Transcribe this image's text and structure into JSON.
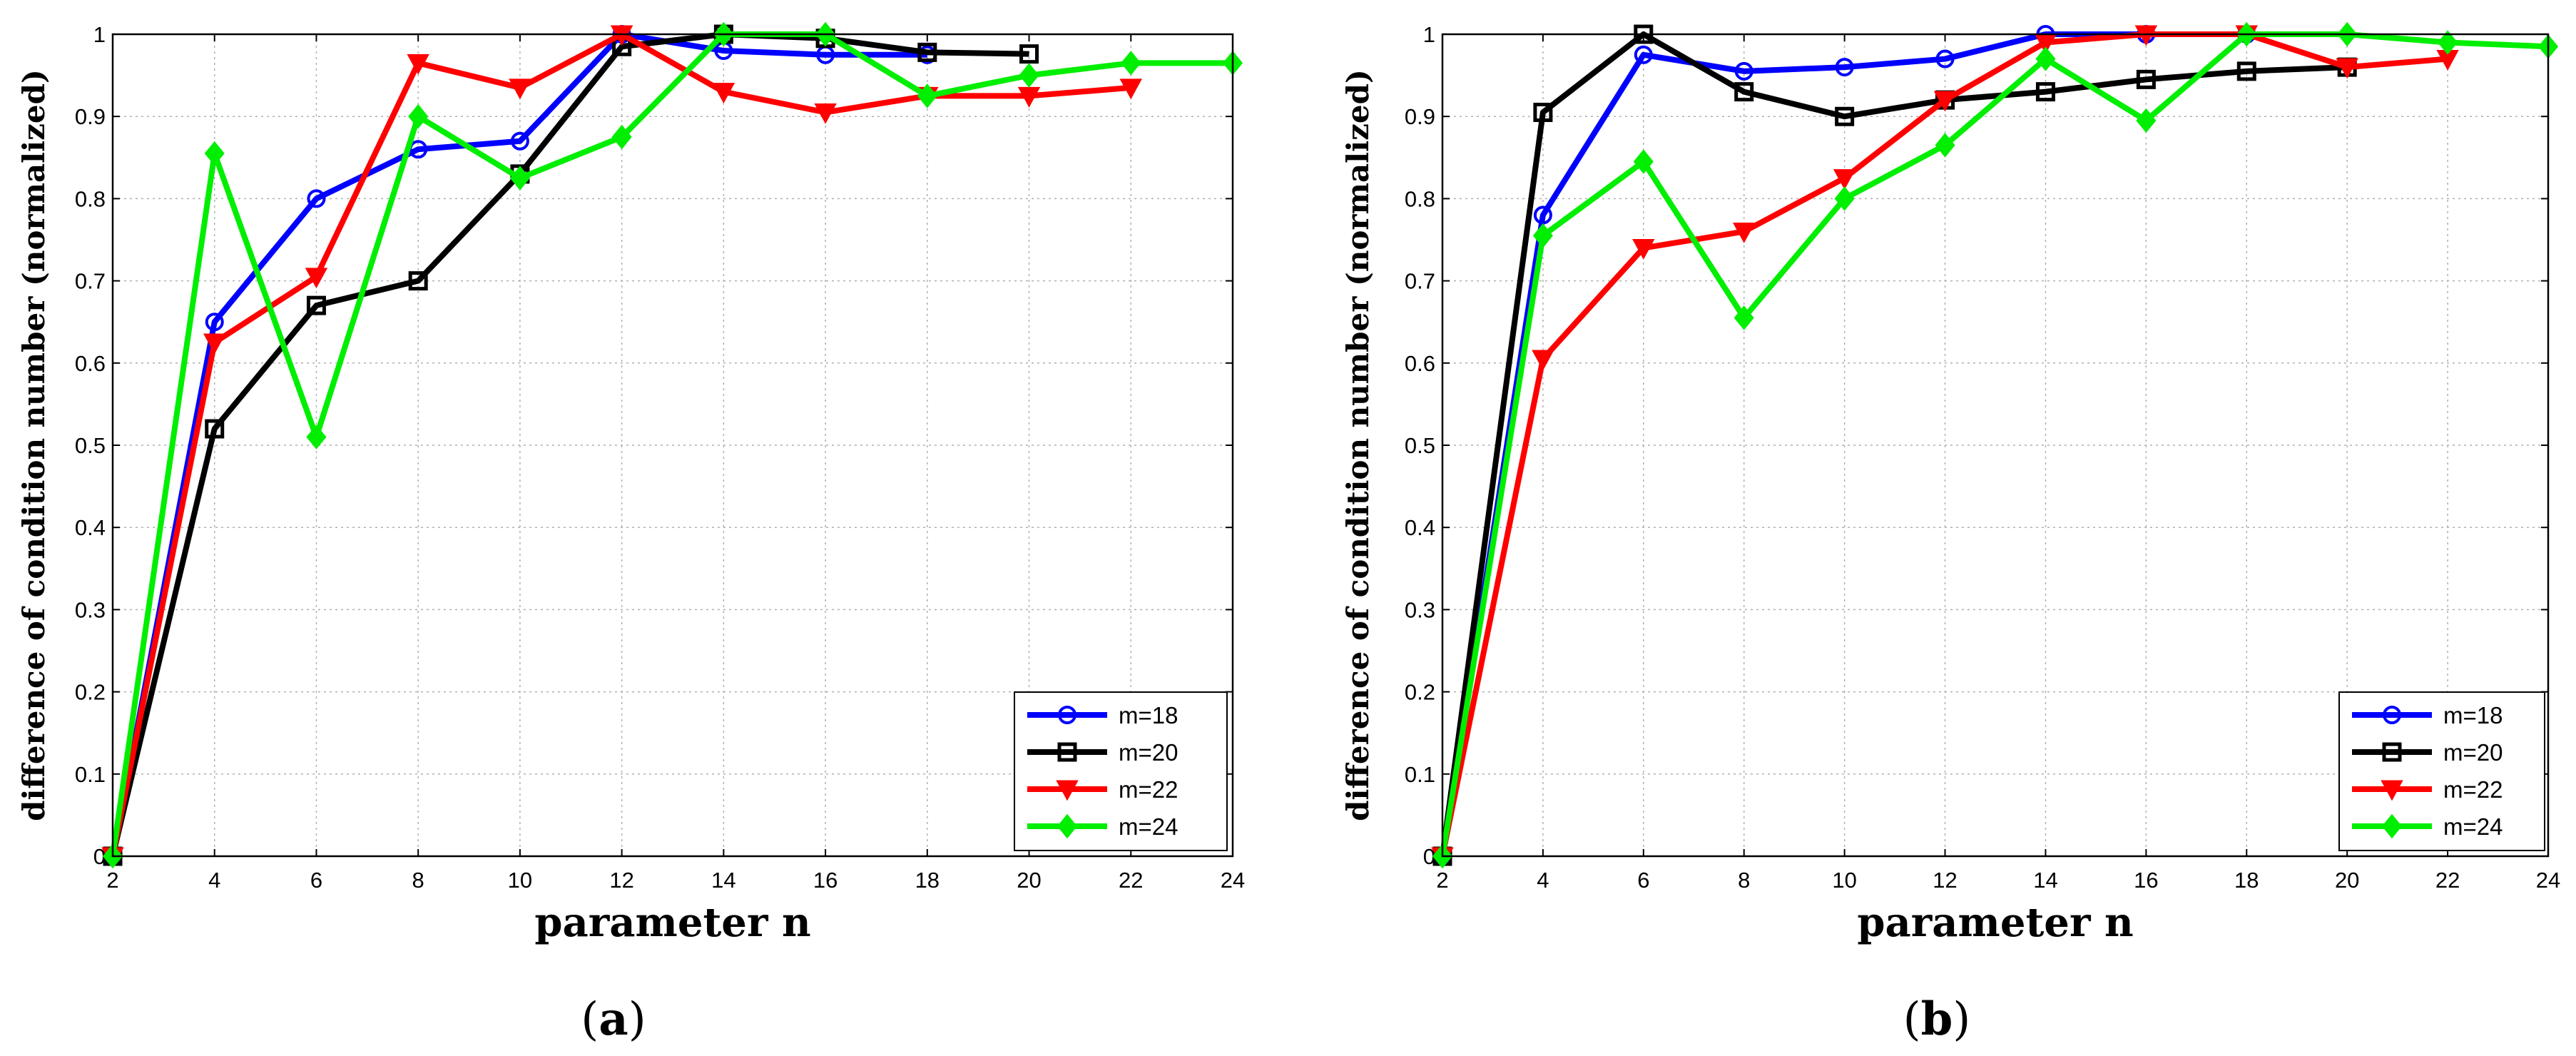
{
  "chart_data": [
    {
      "type": "line",
      "panel_label": "a",
      "xlabel": "parameter n",
      "ylabel": "difference of condition number (normalized)",
      "xlim": [
        2,
        24
      ],
      "ylim": [
        0,
        1
      ],
      "xticks": [
        "2",
        "4",
        "6",
        "8",
        "10",
        "12",
        "14",
        "16",
        "18",
        "20",
        "22",
        "24"
      ],
      "yticks": [
        "0",
        "0.1",
        "0.2",
        "0.3",
        "0.4",
        "0.5",
        "0.6",
        "0.7",
        "0.8",
        "0.9",
        "1"
      ],
      "grid": true,
      "legend_position": "bottom-right",
      "series": [
        {
          "name": "m=18",
          "color": "#0000ff",
          "marker": "circle",
          "x": [
            2,
            4,
            6,
            8,
            10,
            12,
            14,
            16,
            18
          ],
          "y": [
            0,
            0.65,
            0.8,
            0.86,
            0.87,
            1.0,
            0.98,
            0.975,
            0.975
          ]
        },
        {
          "name": "m=20",
          "color": "#000000",
          "marker": "square",
          "x": [
            2,
            4,
            6,
            8,
            10,
            12,
            14,
            16,
            18,
            20
          ],
          "y": [
            0,
            0.52,
            0.67,
            0.7,
            0.83,
            0.985,
            1.0,
            0.995,
            0.978,
            0.976
          ]
        },
        {
          "name": "m=22",
          "color": "#ff0000",
          "marker": "triangle-down",
          "x": [
            2,
            4,
            6,
            8,
            10,
            12,
            14,
            16,
            18,
            20,
            22
          ],
          "y": [
            0,
            0.625,
            0.705,
            0.965,
            0.935,
            1.0,
            0.93,
            0.905,
            0.925,
            0.925,
            0.935
          ]
        },
        {
          "name": "m=24",
          "color": "#00ee00",
          "marker": "diamond",
          "x": [
            2,
            4,
            6,
            8,
            10,
            12,
            14,
            16,
            18,
            20,
            22,
            24
          ],
          "y": [
            0,
            0.855,
            0.51,
            0.9,
            0.825,
            0.875,
            1.0,
            1.0,
            0.925,
            0.95,
            0.965,
            0.965
          ]
        }
      ]
    },
    {
      "type": "line",
      "panel_label": "b",
      "xlabel": "parameter n",
      "ylabel": "difference of condition number (normalized)",
      "xlim": [
        2,
        24
      ],
      "ylim": [
        0,
        1
      ],
      "xticks": [
        "2",
        "4",
        "6",
        "8",
        "10",
        "12",
        "14",
        "16",
        "18",
        "20",
        "22",
        "24"
      ],
      "yticks": [
        "0",
        "0.1",
        "0.2",
        "0.3",
        "0.4",
        "0.5",
        "0.6",
        "0.7",
        "0.8",
        "0.9",
        "1"
      ],
      "grid": true,
      "legend_position": "bottom-right",
      "series": [
        {
          "name": "m=18",
          "color": "#0000ff",
          "marker": "circle",
          "x": [
            2,
            4,
            6,
            8,
            10,
            12,
            14,
            16,
            18
          ],
          "y": [
            0,
            0.78,
            0.975,
            0.955,
            0.96,
            0.97,
            1.0,
            1.0,
            1.0
          ]
        },
        {
          "name": "m=20",
          "color": "#000000",
          "marker": "square",
          "x": [
            2,
            4,
            6,
            8,
            10,
            12,
            14,
            16,
            18,
            20
          ],
          "y": [
            0,
            0.905,
            1.0,
            0.93,
            0.9,
            0.92,
            0.93,
            0.945,
            0.955,
            0.96
          ]
        },
        {
          "name": "m=22",
          "color": "#ff0000",
          "marker": "triangle-down",
          "x": [
            2,
            4,
            6,
            8,
            10,
            12,
            14,
            16,
            18,
            20,
            22
          ],
          "y": [
            0,
            0.605,
            0.74,
            0.76,
            0.825,
            0.92,
            0.99,
            1.0,
            1.0,
            0.96,
            0.97
          ]
        },
        {
          "name": "m=24",
          "color": "#00ee00",
          "marker": "diamond",
          "x": [
            2,
            4,
            6,
            8,
            10,
            12,
            14,
            16,
            18,
            20,
            22,
            24
          ],
          "y": [
            0,
            0.755,
            0.845,
            0.655,
            0.8,
            0.865,
            0.97,
            0.895,
            1.0,
            1.0,
            0.99,
            0.985
          ]
        }
      ]
    }
  ]
}
